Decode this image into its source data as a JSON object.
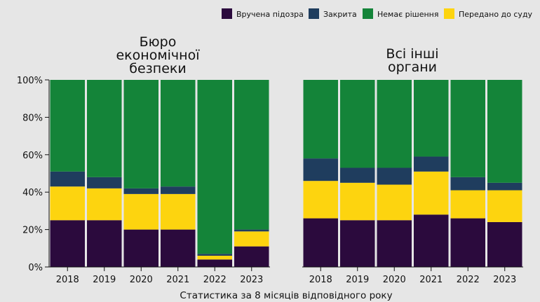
{
  "legend": [
    {
      "key": "suspect",
      "label": "Вручена підозра",
      "color": "#2b0a3d"
    },
    {
      "key": "closed",
      "label": "Закрита",
      "color": "#1f3d5e"
    },
    {
      "key": "none",
      "label": "Немає рішення",
      "color": "#148439"
    },
    {
      "key": "court",
      "label": "Передано до суду",
      "color": "#fdd40f"
    }
  ],
  "caption": "Статистика за 8 місяців відповідного року",
  "chart_data": [
    {
      "type": "bar",
      "stacked": true,
      "title": [
        "Бюро",
        "економічної",
        "безпеки"
      ],
      "categories": [
        "2018",
        "2019",
        "2020",
        "2021",
        "2022",
        "2023"
      ],
      "ylim": [
        0,
        100
      ],
      "yticks": [
        "0%",
        "20%",
        "40%",
        "60%",
        "80%",
        "100%"
      ],
      "xlabel": "Статистика за 8 місяців відповідного року",
      "series": [
        {
          "name": "Вручена підозра",
          "values": [
            25,
            25,
            20,
            20,
            4,
            11
          ]
        },
        {
          "name": "Передано до суду",
          "values": [
            18,
            17,
            19,
            19,
            2,
            8
          ]
        },
        {
          "name": "Закрита",
          "values": [
            8,
            6,
            3,
            4,
            1,
            1
          ]
        },
        {
          "name": "Немає рішення",
          "values": [
            49,
            52,
            58,
            57,
            93,
            80
          ]
        }
      ]
    },
    {
      "type": "bar",
      "stacked": true,
      "title": [
        "Всі інші",
        "органи"
      ],
      "categories": [
        "2018",
        "2019",
        "2020",
        "2021",
        "2022",
        "2023"
      ],
      "ylim": [
        0,
        100
      ],
      "xlabel": "Статистика за 8 місяців відповідного року",
      "series": [
        {
          "name": "Вручена підозра",
          "values": [
            26,
            25,
            25,
            28,
            26,
            24
          ]
        },
        {
          "name": "Передано до суду",
          "values": [
            20,
            20,
            19,
            23,
            15,
            17
          ]
        },
        {
          "name": "Закрита",
          "values": [
            12,
            8,
            9,
            8,
            7,
            4
          ]
        },
        {
          "name": "Немає рішення",
          "values": [
            42,
            47,
            47,
            41,
            52,
            55
          ]
        }
      ]
    }
  ]
}
